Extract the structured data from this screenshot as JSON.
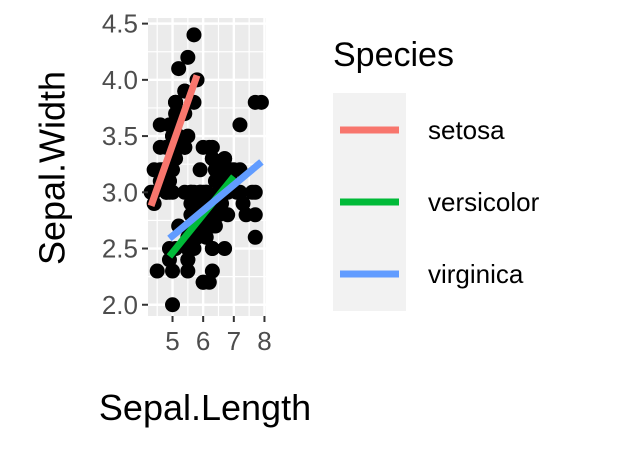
{
  "chart_data": {
    "type": "scatter",
    "xlabel": "Sepal.Length",
    "ylabel": "Sepal.Width",
    "xlim": [
      4.2,
      8.05
    ],
    "ylim": [
      1.9,
      4.55
    ],
    "x_ticks": [
      5,
      6,
      7,
      8
    ],
    "x_tick_labels": [
      "5",
      "6",
      "7",
      "8"
    ],
    "y_ticks": [
      2.0,
      2.5,
      3.0,
      3.5,
      4.0,
      4.5
    ],
    "y_tick_labels": [
      "2.0",
      "2.5",
      "3.0",
      "3.5",
      "4.0",
      "4.5"
    ],
    "grid": true,
    "panel_background": "#ebebeb",
    "point_color": "#000000",
    "points": [
      [
        5.1,
        3.5
      ],
      [
        4.9,
        3.0
      ],
      [
        4.7,
        3.2
      ],
      [
        4.6,
        3.1
      ],
      [
        5.0,
        3.6
      ],
      [
        5.4,
        3.9
      ],
      [
        4.6,
        3.4
      ],
      [
        5.0,
        3.4
      ],
      [
        4.4,
        2.9
      ],
      [
        4.9,
        3.1
      ],
      [
        5.4,
        3.7
      ],
      [
        4.8,
        3.4
      ],
      [
        4.8,
        3.0
      ],
      [
        4.3,
        3.0
      ],
      [
        5.8,
        4.0
      ],
      [
        5.7,
        4.4
      ],
      [
        5.4,
        3.9
      ],
      [
        5.1,
        3.5
      ],
      [
        5.7,
        3.8
      ],
      [
        5.1,
        3.8
      ],
      [
        5.4,
        3.4
      ],
      [
        5.1,
        3.7
      ],
      [
        4.6,
        3.6
      ],
      [
        5.1,
        3.3
      ],
      [
        4.8,
        3.4
      ],
      [
        5.0,
        3.0
      ],
      [
        5.0,
        3.4
      ],
      [
        5.2,
        3.5
      ],
      [
        5.2,
        3.4
      ],
      [
        4.7,
        3.2
      ],
      [
        4.8,
        3.1
      ],
      [
        5.4,
        3.4
      ],
      [
        5.2,
        4.1
      ],
      [
        5.5,
        4.2
      ],
      [
        4.9,
        3.1
      ],
      [
        5.0,
        3.2
      ],
      [
        5.5,
        3.5
      ],
      [
        4.9,
        3.6
      ],
      [
        4.4,
        3.0
      ],
      [
        5.1,
        3.4
      ],
      [
        5.0,
        3.5
      ],
      [
        4.5,
        2.3
      ],
      [
        4.4,
        3.2
      ],
      [
        5.0,
        3.5
      ],
      [
        5.1,
        3.8
      ],
      [
        4.8,
        3.0
      ],
      [
        5.1,
        3.8
      ],
      [
        4.6,
        3.2
      ],
      [
        5.3,
        3.7
      ],
      [
        5.0,
        3.3
      ],
      [
        7.0,
        3.2
      ],
      [
        6.4,
        3.2
      ],
      [
        6.9,
        3.1
      ],
      [
        5.5,
        2.3
      ],
      [
        6.5,
        2.8
      ],
      [
        5.7,
        2.8
      ],
      [
        6.3,
        3.3
      ],
      [
        4.9,
        2.4
      ],
      [
        6.6,
        2.9
      ],
      [
        5.2,
        2.7
      ],
      [
        5.0,
        2.0
      ],
      [
        5.9,
        3.0
      ],
      [
        6.0,
        2.2
      ],
      [
        6.1,
        2.9
      ],
      [
        5.6,
        2.9
      ],
      [
        6.7,
        3.1
      ],
      [
        5.6,
        3.0
      ],
      [
        5.8,
        2.7
      ],
      [
        6.2,
        2.2
      ],
      [
        5.6,
        2.5
      ],
      [
        5.9,
        3.2
      ],
      [
        6.1,
        2.8
      ],
      [
        6.3,
        2.5
      ],
      [
        6.1,
        2.8
      ],
      [
        6.4,
        2.9
      ],
      [
        6.6,
        3.0
      ],
      [
        6.8,
        2.8
      ],
      [
        6.7,
        3.0
      ],
      [
        6.0,
        2.9
      ],
      [
        5.7,
        2.6
      ],
      [
        5.5,
        2.4
      ],
      [
        5.5,
        2.4
      ],
      [
        5.8,
        2.7
      ],
      [
        6.0,
        2.7
      ],
      [
        5.4,
        3.0
      ],
      [
        6.0,
        3.4
      ],
      [
        6.7,
        3.1
      ],
      [
        6.3,
        2.3
      ],
      [
        5.6,
        3.0
      ],
      [
        5.5,
        2.5
      ],
      [
        5.5,
        2.6
      ],
      [
        6.1,
        3.0
      ],
      [
        5.8,
        2.6
      ],
      [
        5.0,
        2.3
      ],
      [
        5.6,
        2.7
      ],
      [
        5.7,
        3.0
      ],
      [
        5.7,
        2.9
      ],
      [
        6.2,
        2.9
      ],
      [
        5.1,
        2.5
      ],
      [
        5.7,
        2.8
      ],
      [
        6.3,
        3.3
      ],
      [
        5.8,
        2.7
      ],
      [
        7.1,
        3.0
      ],
      [
        6.3,
        2.9
      ],
      [
        6.5,
        3.0
      ],
      [
        7.6,
        3.0
      ],
      [
        4.9,
        2.5
      ],
      [
        7.3,
        2.9
      ],
      [
        6.7,
        2.5
      ],
      [
        7.2,
        3.6
      ],
      [
        6.5,
        3.2
      ],
      [
        6.4,
        2.7
      ],
      [
        6.8,
        3.0
      ],
      [
        5.7,
        2.5
      ],
      [
        5.8,
        2.8
      ],
      [
        6.4,
        3.2
      ],
      [
        6.5,
        3.0
      ],
      [
        7.7,
        3.8
      ],
      [
        7.7,
        2.6
      ],
      [
        6.0,
        2.2
      ],
      [
        6.9,
        3.2
      ],
      [
        5.6,
        2.8
      ],
      [
        7.7,
        2.8
      ],
      [
        6.3,
        2.7
      ],
      [
        6.7,
        3.3
      ],
      [
        7.2,
        3.2
      ],
      [
        6.2,
        2.8
      ],
      [
        6.1,
        3.0
      ],
      [
        6.4,
        2.8
      ],
      [
        7.2,
        3.0
      ],
      [
        7.4,
        2.8
      ],
      [
        7.9,
        3.8
      ],
      [
        6.4,
        2.8
      ],
      [
        6.3,
        2.8
      ],
      [
        6.1,
        2.6
      ],
      [
        7.7,
        3.0
      ],
      [
        6.3,
        3.4
      ],
      [
        6.4,
        3.1
      ],
      [
        6.0,
        3.0
      ],
      [
        6.9,
        3.1
      ],
      [
        6.7,
        3.1
      ],
      [
        6.9,
        3.1
      ],
      [
        5.8,
        2.7
      ],
      [
        6.8,
        3.2
      ],
      [
        6.7,
        3.3
      ],
      [
        6.7,
        3.0
      ],
      [
        6.3,
        2.5
      ],
      [
        6.5,
        3.0
      ],
      [
        6.2,
        3.4
      ],
      [
        5.9,
        3.0
      ]
    ],
    "series": [
      {
        "name": "setosa",
        "color": "#F8766D",
        "x": [
          4.3,
          5.8
        ],
        "y": [
          2.88,
          4.04
        ]
      },
      {
        "name": "versicolor",
        "color": "#00BA38",
        "x": [
          4.9,
          7.0
        ],
        "y": [
          2.43,
          3.14
        ]
      },
      {
        "name": "virginica",
        "color": "#619CFF",
        "x": [
          4.9,
          7.9
        ],
        "y": [
          2.59,
          3.27
        ]
      }
    ],
    "legend": {
      "title": "Species",
      "position": "right",
      "background": "#f2f2f2"
    }
  }
}
